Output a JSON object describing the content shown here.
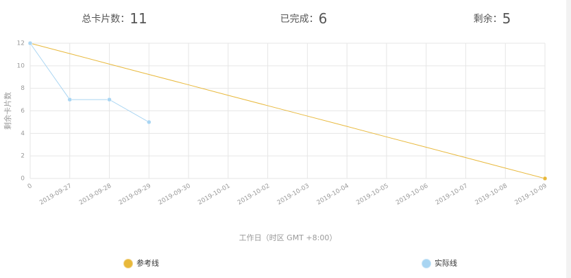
{
  "stats": [
    {
      "label": "总卡片数：",
      "value": 11
    },
    {
      "label": "已完成：",
      "value": 6
    },
    {
      "label": "剩余：",
      "value": 5
    }
  ],
  "chart_data": {
    "type": "line",
    "y_label": "剩余卡片数",
    "x_label": "工作日（时区 GMT +8:00）",
    "categories": [
      "0",
      "2019-09-27",
      "2019-09-28",
      "2019-09-29",
      "2019-09-30",
      "2019-10-01",
      "2019-10-02",
      "2019-10-03",
      "2019-10-04",
      "2019-10-05",
      "2019-10-06",
      "2019-10-07",
      "2019-10-08",
      "2019-10-09"
    ],
    "series": [
      {
        "name": "参考线",
        "color": "#e8b83a",
        "values": [
          12,
          11.08,
          10.15,
          9.23,
          8.31,
          7.38,
          6.46,
          5.54,
          4.62,
          3.69,
          2.77,
          1.85,
          0.92,
          0
        ]
      },
      {
        "name": "实际线",
        "color": "#a9d5f2",
        "values": [
          12,
          7,
          7,
          5,
          null,
          null,
          null,
          null,
          null,
          null,
          null,
          null,
          null,
          null
        ]
      }
    ],
    "ylim": [
      0,
      12
    ],
    "yticks": [
      0,
      2,
      4,
      6,
      8,
      10,
      12
    ],
    "grid": true
  }
}
